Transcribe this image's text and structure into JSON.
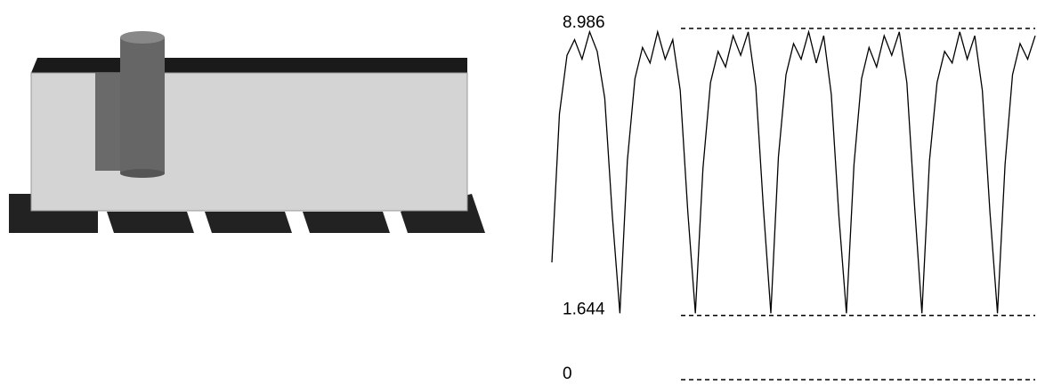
{
  "chart_data": {
    "type": "line",
    "color": "#000000",
    "values": [
      3.0,
      6.8,
      8.3,
      8.7,
      8.2,
      8.9,
      8.4,
      7.2,
      4.2,
      1.7,
      5.6,
      7.7,
      8.5,
      8.1,
      8.9,
      8.2,
      8.7,
      7.4,
      4.3,
      1.7,
      5.4,
      7.6,
      8.4,
      8.0,
      8.8,
      8.3,
      8.9,
      7.5,
      4.4,
      1.7,
      5.7,
      7.8,
      8.6,
      8.2,
      8.9,
      8.1,
      8.8,
      7.3,
      4.2,
      1.7,
      5.5,
      7.7,
      8.5,
      8.0,
      8.8,
      8.3,
      8.9,
      7.6,
      4.5,
      1.7,
      5.6,
      7.6,
      8.4,
      8.1,
      8.9,
      8.2,
      8.8,
      7.4,
      4.3,
      1.7,
      5.5,
      7.8,
      8.6,
      8.2,
      8.8
    ],
    "ylim": [
      0,
      8.986
    ],
    "yticks": [
      0,
      1.644,
      8.986
    ],
    "grid": true
  }
}
